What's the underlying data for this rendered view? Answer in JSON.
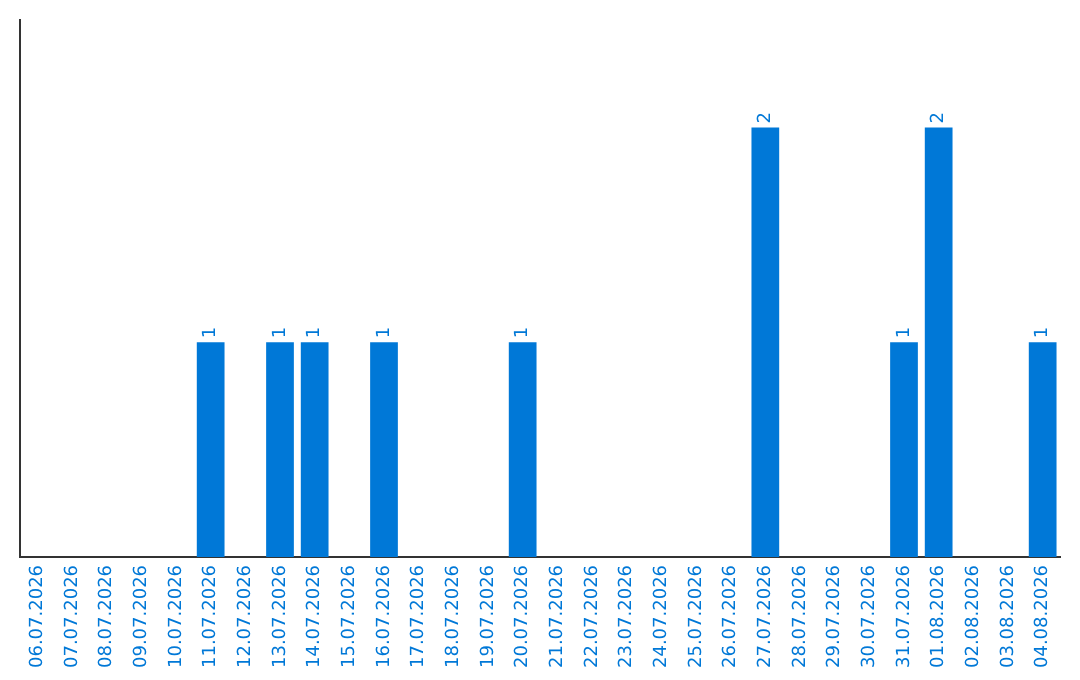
{
  "chart_data": {
    "type": "bar",
    "categories": [
      "06.07.2026",
      "07.07.2026",
      "08.07.2026",
      "09.07.2026",
      "10.07.2026",
      "11.07.2026",
      "12.07.2026",
      "13.07.2026",
      "14.07.2026",
      "15.07.2026",
      "16.07.2026",
      "17.07.2026",
      "18.07.2026",
      "19.07.2026",
      "20.07.2026",
      "21.07.2026",
      "22.07.2026",
      "23.07.2026",
      "24.07.2026",
      "25.07.2026",
      "26.07.2026",
      "27.07.2026",
      "28.07.2026",
      "29.07.2026",
      "30.07.2026",
      "31.07.2026",
      "01.08.2026",
      "02.08.2026",
      "03.08.2026",
      "04.08.2026"
    ],
    "values": [
      0,
      0,
      0,
      0,
      0,
      1,
      0,
      1,
      1,
      0,
      1,
      0,
      0,
      0,
      1,
      0,
      0,
      0,
      0,
      0,
      0,
      2,
      0,
      0,
      0,
      1,
      2,
      0,
      0,
      1
    ],
    "value_labels": [
      null,
      null,
      null,
      null,
      null,
      "1",
      null,
      "1",
      "1",
      null,
      "1",
      null,
      null,
      null,
      "1",
      null,
      null,
      null,
      null,
      null,
      null,
      "2",
      null,
      null,
      null,
      "1",
      "2",
      null,
      null,
      "1"
    ],
    "color": "#0078d7",
    "grid": false,
    "legend": false,
    "tick_labels": "x"
  }
}
